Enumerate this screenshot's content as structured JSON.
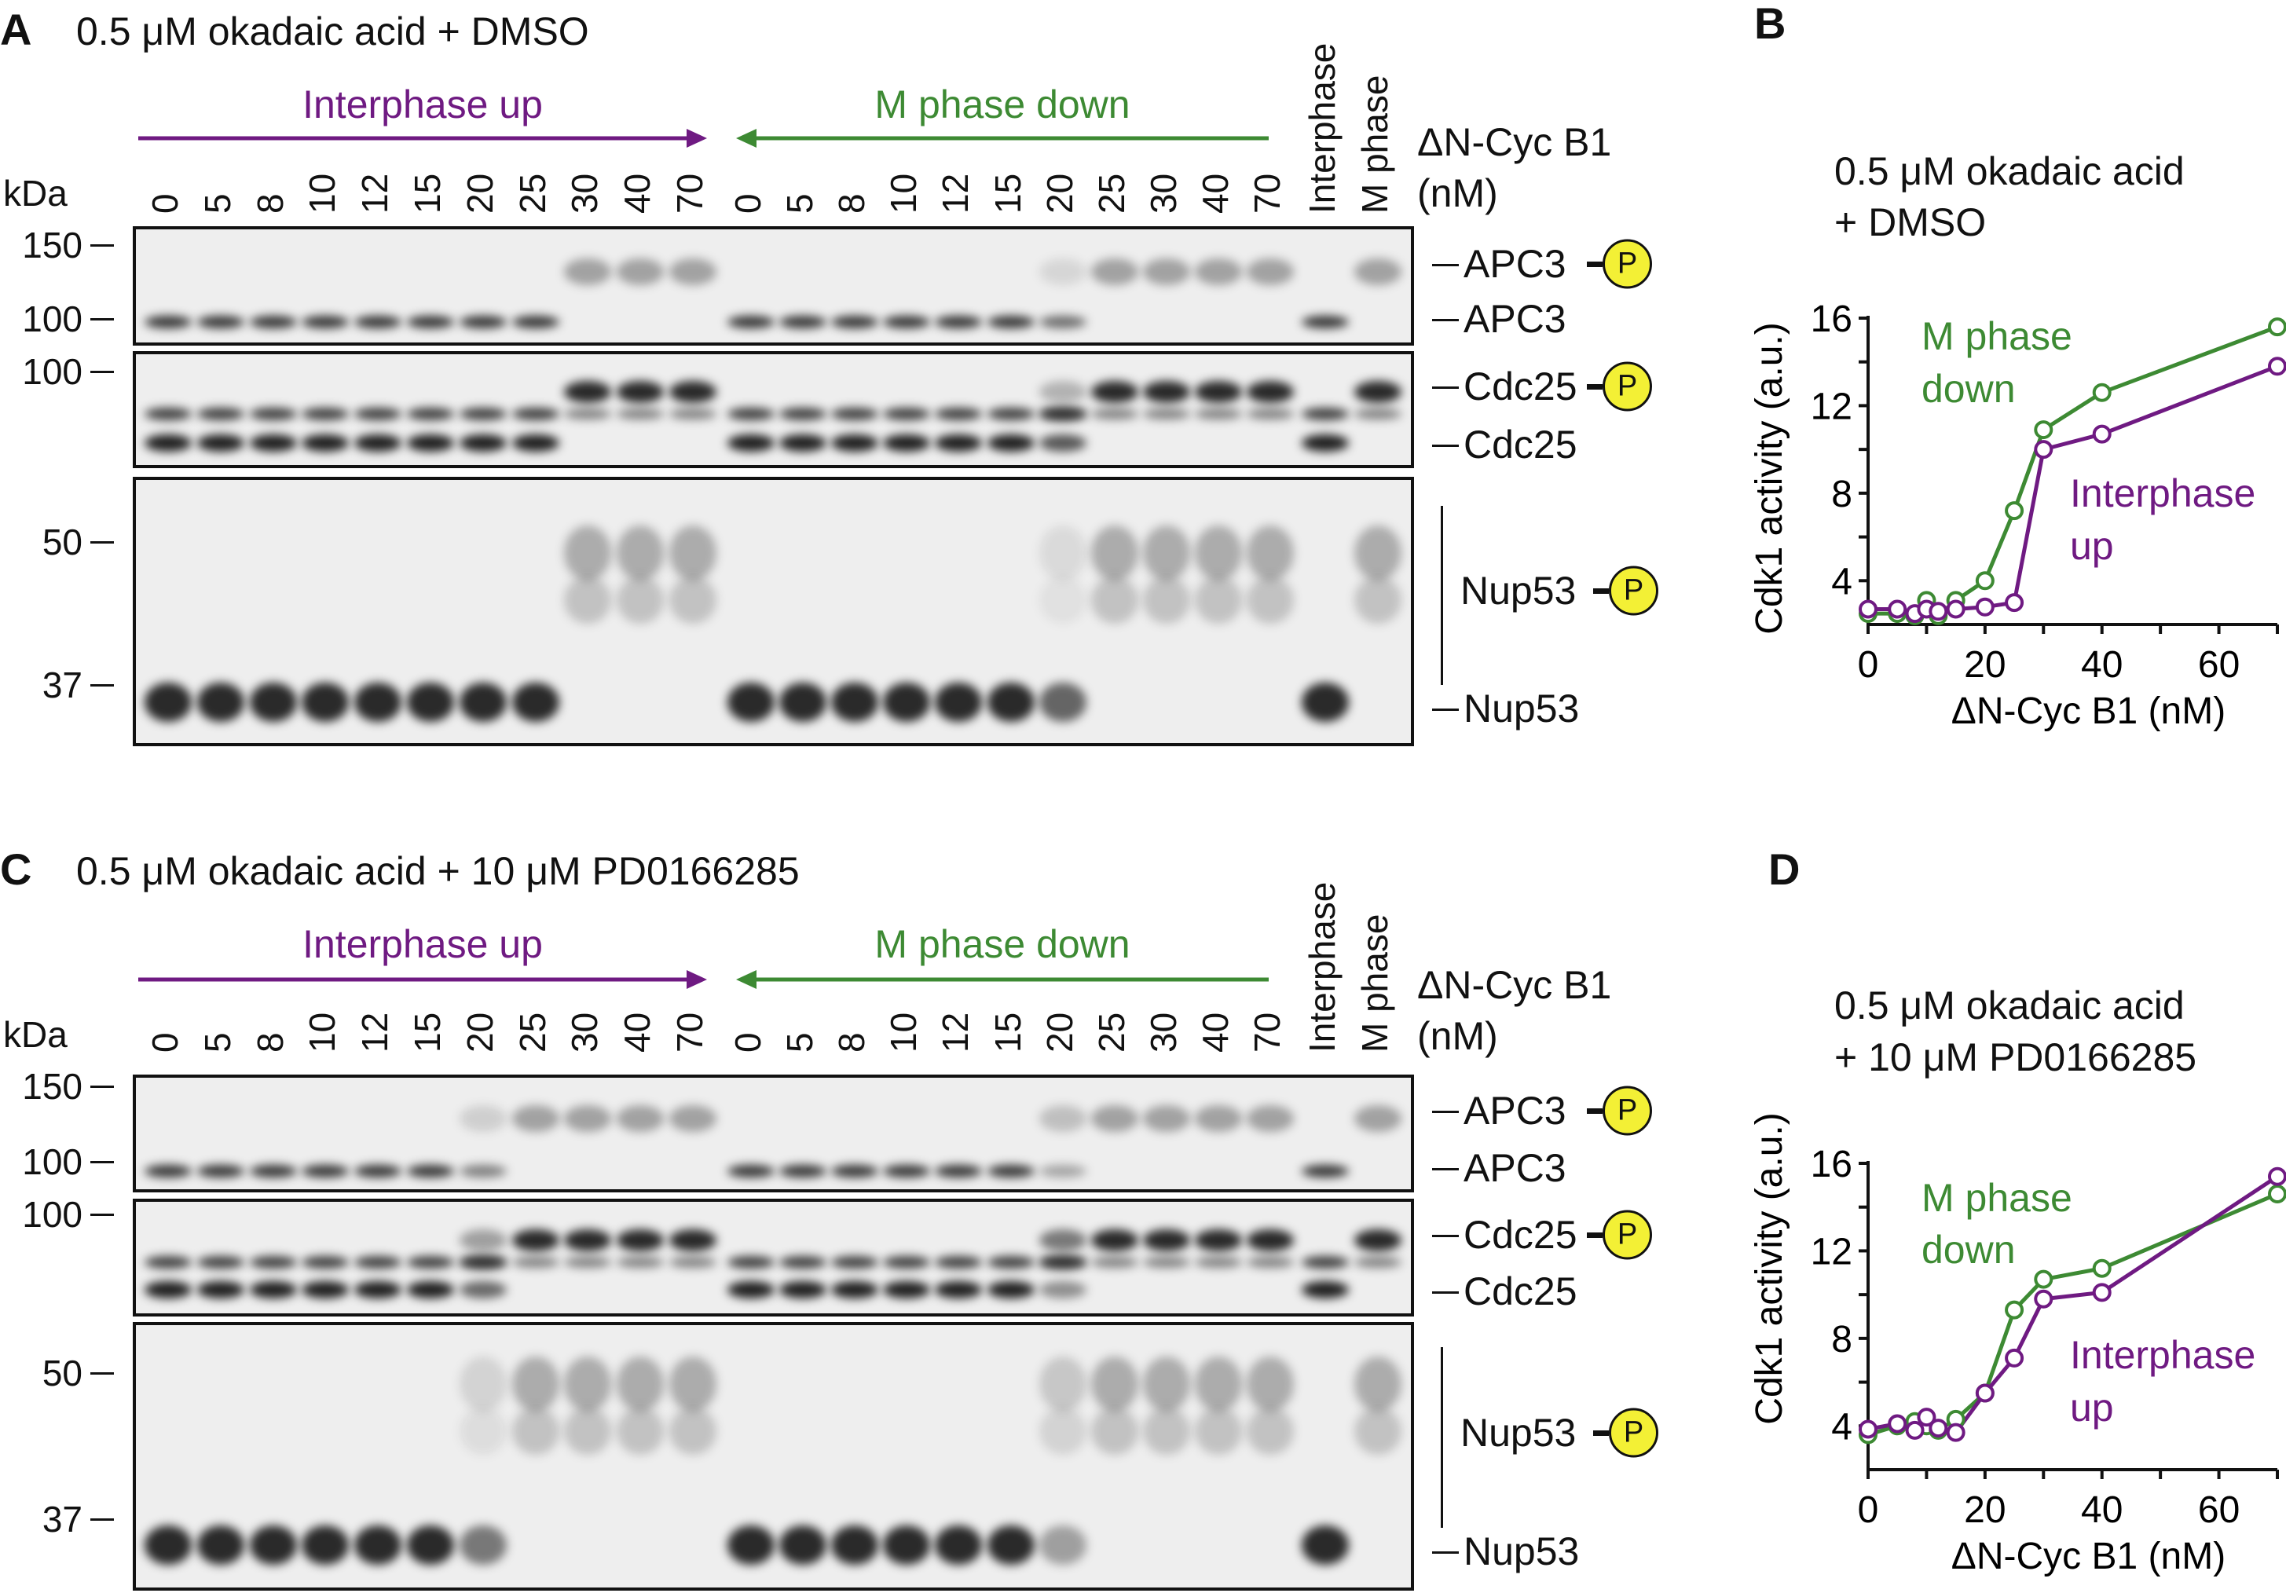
{
  "panels": [
    {
      "letter": "A",
      "title": "0.5 μM okadaic acid + DMSO",
      "arrow_up": "Interphase up",
      "arrow_down": "M phase down",
      "lanes": [
        "0",
        "5",
        "8",
        "10",
        "12",
        "15",
        "20",
        "25",
        "30",
        "40",
        "70"
      ],
      "controls": [
        "Interphase",
        "M phase"
      ],
      "kda": "kDa",
      "markers": [
        "150",
        "100",
        "100",
        "50",
        "37"
      ],
      "cyc_label": "ΔN-Cyc B1",
      "cyc_unit": "(nM)",
      "proteins": [
        "APC3",
        "APC3",
        "Cdc25",
        "Cdc25",
        "Nup53",
        "Nup53"
      ],
      "phospho_symbol": "P"
    },
    {
      "letter": "C",
      "title": "0.5 μM okadaic acid + 10 μM PD0166285",
      "arrow_up": "Interphase up",
      "arrow_down": "M phase down",
      "lanes": [
        "0",
        "5",
        "8",
        "10",
        "12",
        "15",
        "20",
        "25",
        "30",
        "40",
        "70"
      ],
      "controls": [
        "Interphase",
        "M phase"
      ],
      "kda": "kDa",
      "markers": [
        "150",
        "100",
        "100",
        "50",
        "37"
      ],
      "cyc_label": "ΔN-Cyc B1",
      "cyc_unit": "(nM)",
      "proteins": [
        "APC3",
        "APC3",
        "Cdc25",
        "Cdc25",
        "Nup53",
        "Nup53"
      ],
      "phospho_symbol": "P"
    }
  ],
  "colors": {
    "interphase_up": "#6f1a82",
    "m_phase_down": "#3d8a33",
    "phospho": "#f3f035"
  },
  "chart_data": [
    {
      "letter": "B",
      "type": "line",
      "title": "0.5 μM okadaic acid",
      "subtitle": "+ DMSO",
      "xlabel": "ΔN-Cyc B1 (nM)",
      "ylabel": "Cdk1 activity (a.u.)",
      "xlim": [
        0,
        70
      ],
      "ylim": [
        2,
        16
      ],
      "xticks": [
        "0",
        "20",
        "40",
        "60"
      ],
      "yticks": [
        "4",
        "8",
        "12",
        "16"
      ],
      "grid": false,
      "x": [
        0,
        5,
        8,
        10,
        12,
        15,
        20,
        25,
        30,
        40,
        70
      ],
      "series": [
        {
          "name": "M phase down",
          "legend": [
            "M phase",
            "down"
          ],
          "values": [
            2.5,
            2.5,
            2.4,
            3.1,
            2.4,
            3.1,
            4.0,
            7.2,
            10.9,
            12.6,
            15.6
          ]
        },
        {
          "name": "Interphase up",
          "legend": [
            "Interphase",
            "up"
          ],
          "values": [
            2.7,
            2.7,
            2.5,
            2.7,
            2.6,
            2.7,
            2.8,
            3.0,
            10.0,
            10.7,
            13.8
          ]
        }
      ]
    },
    {
      "letter": "D",
      "type": "line",
      "title": "0.5 μM okadaic acid",
      "subtitle": "+ 10 μM PD0166285",
      "xlabel": "ΔN-Cyc B1 (nM)",
      "ylabel": "Cdk1 activity (a.u.)",
      "xlim": [
        0,
        70
      ],
      "ylim": [
        2,
        16
      ],
      "xticks": [
        "0",
        "20",
        "40",
        "60"
      ],
      "yticks": [
        "4",
        "8",
        "12",
        "16"
      ],
      "grid": false,
      "x": [
        0,
        5,
        8,
        10,
        12,
        15,
        20,
        25,
        30,
        40,
        70
      ],
      "series": [
        {
          "name": "M phase down",
          "legend": [
            "M phase",
            "down"
          ],
          "values": [
            3.6,
            4.0,
            4.2,
            4.0,
            3.8,
            4.3,
            5.5,
            9.3,
            10.7,
            11.2,
            14.6
          ]
        },
        {
          "name": "Interphase up",
          "legend": [
            "Interphase",
            "up"
          ],
          "values": [
            3.85,
            4.1,
            3.8,
            4.4,
            3.9,
            3.7,
            5.5,
            7.1,
            9.8,
            10.1,
            15.4
          ]
        }
      ]
    }
  ]
}
